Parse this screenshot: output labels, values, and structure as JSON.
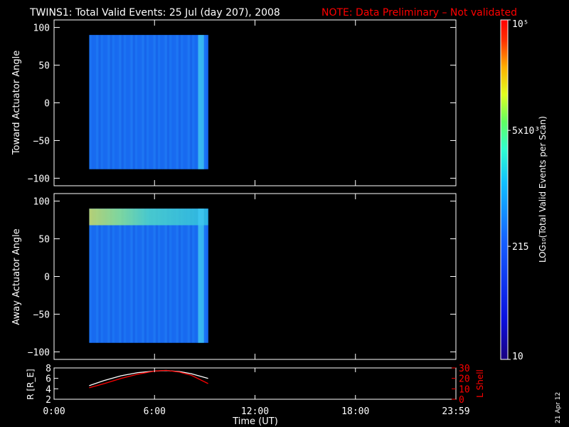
{
  "header": {
    "title": "TWINS1: Total Valid Events: 25 Jul (day 207), 2008",
    "note": "NOTE: Data Preliminary – Not validated",
    "note_color": "#ff0000"
  },
  "footer": {
    "date_stamp": "21 Apr 12"
  },
  "chart_data": [
    {
      "type": "heatmap",
      "panel": "toward",
      "ylabel": "Toward Actuator Angle",
      "ylim": [
        -110,
        110
      ],
      "yticks": [
        100,
        50,
        0,
        -50,
        -100
      ],
      "x_range_hours": [
        0,
        24
      ],
      "data_extent": {
        "x_hours": [
          2.1,
          9.2
        ],
        "y_deg": [
          -88,
          90
        ]
      },
      "dominant_level": "~100-200 events per scan (blue)",
      "features": [
        {
          "type": "bright_band",
          "x_hours": [
            8.6,
            8.95
          ],
          "intensity": "light blue"
        }
      ]
    },
    {
      "type": "heatmap",
      "panel": "away",
      "ylabel": "Away Actuator Angle",
      "ylim": [
        -110,
        110
      ],
      "yticks": [
        100,
        50,
        0,
        -50,
        -100
      ],
      "x_range_hours": [
        0,
        24
      ],
      "data_extent": {
        "x_hours": [
          2.1,
          9.2
        ],
        "y_deg": [
          -88,
          90
        ]
      },
      "features": [
        {
          "type": "bright_band",
          "y_deg": [
            68,
            90
          ],
          "x_hours": [
            2.1,
            9.2
          ],
          "intensity": "yellow-green near x<4h"
        },
        {
          "type": "bright_band",
          "x_hours": [
            8.6,
            8.95
          ],
          "intensity": "light blue"
        }
      ]
    },
    {
      "type": "line",
      "panel": "orbit",
      "ylabel_left": "R [R_E]",
      "ylabel_right": "L Shell",
      "ylim_left": [
        2,
        8
      ],
      "ylim_right": [
        0,
        30
      ],
      "yticks_left": [
        8,
        6,
        4,
        2
      ],
      "yticks_right": [
        30,
        20,
        10,
        0
      ],
      "xlabel": "Time (UT)",
      "xticks": [
        "0:00",
        "6:00",
        "12:00",
        "18:00",
        "23:59"
      ],
      "series": [
        {
          "axis": "left",
          "color": "#ffffff",
          "x": [
            2.1,
            3,
            4,
            5,
            6,
            6.7,
            7.5,
            8.2,
            9.2
          ],
          "y": [
            4.6,
            5.6,
            6.5,
            7.1,
            7.4,
            7.5,
            7.3,
            6.9,
            6.0
          ]
        },
        {
          "axis": "right",
          "color": "#ff0000",
          "x": [
            2.1,
            3,
            4,
            5,
            6,
            6.7,
            7.5,
            8.2,
            9.2
          ],
          "y": [
            11,
            15,
            20,
            24,
            27,
            27.7,
            26,
            23,
            15
          ]
        }
      ]
    }
  ],
  "colorbar": {
    "label": "LOG₁₀(Total Valid Events per Scan)",
    "range": [
      10,
      100000
    ],
    "ticks": [
      {
        "value": 100000,
        "label": "10⁵"
      },
      {
        "value": 5000,
        "label": "5x10³"
      },
      {
        "value": 215,
        "label": "215"
      },
      {
        "value": 10,
        "label": "10"
      }
    ]
  }
}
